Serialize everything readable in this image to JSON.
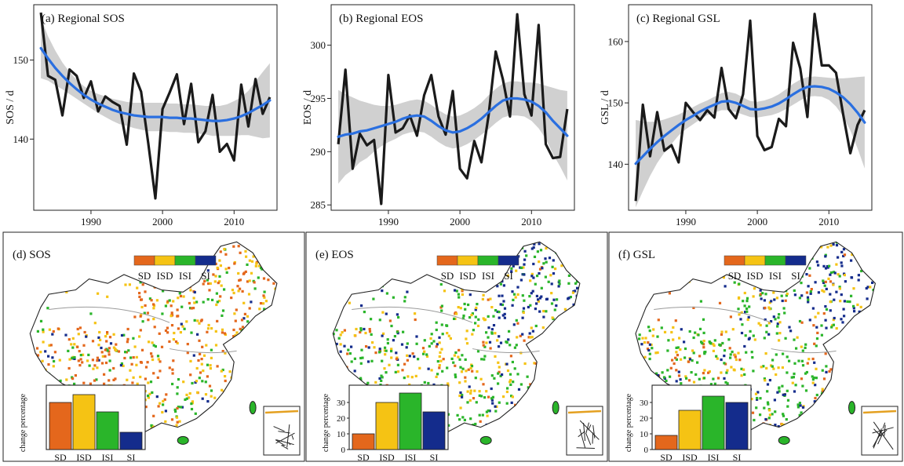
{
  "colors": {
    "series": "#1a1a1a",
    "trend": "#2a6fe0",
    "band": "#c8c8c8",
    "SD": "#e4671c",
    "ISD": "#f5c314",
    "ISI": "#2ab52a",
    "SI": "#142c8c",
    "land": "#ffffff",
    "border": "#222222"
  },
  "chart_data": [
    {
      "id": "a",
      "type": "line",
      "title": "(a) Regional SOS",
      "ylabel": "SOS / d",
      "xlabel": "",
      "xlim": [
        1982,
        2016
      ],
      "ylim": [
        131,
        157
      ],
      "xticks": [
        1990,
        2000,
        2010
      ],
      "yticks": [
        140,
        150
      ],
      "x": [
        1983,
        1984,
        1985,
        1986,
        1987,
        1988,
        1989,
        1990,
        1991,
        1992,
        1993,
        1994,
        1995,
        1996,
        1997,
        1998,
        1999,
        2000,
        2001,
        2002,
        2003,
        2004,
        2005,
        2006,
        2007,
        2008,
        2009,
        2010,
        2011,
        2012,
        2013,
        2014,
        2015
      ],
      "series": [
        {
          "name": "annual",
          "values": [
            156,
            148,
            147.5,
            143,
            148.8,
            148,
            145.2,
            147.3,
            143.5,
            145.4,
            144.7,
            144.2,
            139.3,
            148.3,
            146,
            139.5,
            132.5,
            143.8,
            145.9,
            148.2,
            141.9,
            147,
            139.6,
            141,
            145.6,
            138.4,
            139.4,
            137.3,
            146.9,
            141.6,
            147.6,
            143.2,
            145.3
          ]
        },
        {
          "name": "trend",
          "values": [
            151.5,
            150.2,
            149,
            148,
            147.1,
            146.3,
            145.6,
            145,
            144.5,
            144.1,
            143.7,
            143.4,
            143.2,
            143,
            142.9,
            142.8,
            142.8,
            142.8,
            142.7,
            142.7,
            142.6,
            142.6,
            142.5,
            142.4,
            142.3,
            142.3,
            142.4,
            142.6,
            142.9,
            143.3,
            143.8,
            144.3,
            144.9
          ]
        },
        {
          "name": "band_upper",
          "values": [
            155.3,
            153,
            151.2,
            149.7,
            148.5,
            147.5,
            146.7,
            146.1,
            145.7,
            145.4,
            145.1,
            144.9,
            144.7,
            144.6,
            144.6,
            144.6,
            144.6,
            144.6,
            144.5,
            144.5,
            144.4,
            144.4,
            144.3,
            144.2,
            144.2,
            144.2,
            144.4,
            144.8,
            145.3,
            146.1,
            147.3,
            148.5,
            149.6
          ]
        },
        {
          "name": "band_lower",
          "values": [
            147.7,
            147.4,
            146.8,
            146.3,
            145.7,
            145.1,
            144.5,
            143.9,
            143.3,
            142.8,
            142.3,
            141.9,
            141.7,
            141.4,
            141.2,
            141,
            141,
            141,
            140.9,
            140.9,
            140.8,
            140.8,
            140.7,
            140.6,
            140.4,
            140.4,
            140.4,
            140.4,
            140.5,
            140.5,
            140.3,
            140.1,
            140.2
          ]
        }
      ]
    },
    {
      "id": "b",
      "type": "line",
      "title": "(b) Regional EOS",
      "ylabel": "EOS / d",
      "xlabel": "",
      "xlim": [
        1982,
        2016
      ],
      "ylim": [
        284.5,
        303.8
      ],
      "xticks": [
        1990,
        2000,
        2010
      ],
      "yticks": [
        285,
        290,
        295,
        300
      ],
      "x": [
        1983,
        1984,
        1985,
        1986,
        1987,
        1988,
        1989,
        1990,
        1991,
        1992,
        1993,
        1994,
        1995,
        1996,
        1997,
        1998,
        1999,
        2000,
        2001,
        2002,
        2003,
        2004,
        2005,
        2006,
        2007,
        2008,
        2009,
        2010,
        2011,
        2012,
        2013,
        2014,
        2015
      ],
      "series": [
        {
          "name": "annual",
          "values": [
            290.7,
            297.7,
            288.4,
            291.7,
            290.6,
            291.1,
            285.1,
            297.2,
            291.8,
            292.2,
            293.4,
            291.5,
            295.3,
            297.2,
            293.3,
            291.6,
            295.7,
            288.4,
            287.5,
            291,
            289,
            293.4,
            299.4,
            296.8,
            293.3,
            302.9,
            295.4,
            293.4,
            301.9,
            290.7,
            289.4,
            289.5,
            294
          ]
        },
        {
          "name": "trend",
          "values": [
            291.4,
            291.6,
            291.7,
            291.9,
            292,
            292.2,
            292.4,
            292.6,
            292.8,
            293.1,
            293.3,
            293.4,
            293.3,
            292.9,
            292.4,
            292,
            291.8,
            291.9,
            292.2,
            292.6,
            293.1,
            293.7,
            294.3,
            294.8,
            295,
            295,
            294.9,
            294.7,
            294.3,
            293.7,
            292.9,
            292.2,
            291.5
          ]
        },
        {
          "name": "band_upper",
          "values": [
            295.8,
            295.4,
            295.1,
            294.8,
            294.6,
            294.4,
            294.3,
            294.3,
            294.4,
            294.6,
            294.8,
            294.9,
            294.8,
            294.4,
            293.9,
            293.5,
            293.3,
            293.4,
            293.7,
            294.1,
            294.6,
            295.3,
            295.9,
            296.4,
            296.6,
            296.6,
            296.5,
            296.5,
            296.4,
            296.2,
            296,
            295.8,
            295.7
          ]
        },
        {
          "name": "band_lower",
          "values": [
            287,
            287.8,
            288.3,
            289,
            289.4,
            290,
            290.5,
            290.9,
            291.2,
            291.6,
            291.8,
            291.9,
            291.8,
            291.4,
            290.9,
            290.5,
            290.3,
            290.4,
            290.7,
            291.1,
            291.6,
            292.1,
            292.7,
            293.2,
            293.4,
            293.4,
            293.3,
            292.9,
            292.2,
            291.2,
            289.8,
            288.6,
            287.3
          ]
        }
      ]
    },
    {
      "id": "c",
      "type": "line",
      "title": "(c) Regional GSL",
      "ylabel": "GSL / d",
      "xlabel": "",
      "xlim": [
        1982,
        2016
      ],
      "ylim": [
        132.5,
        166
      ],
      "xticks": [
        1990,
        2000,
        2010
      ],
      "yticks": [
        140,
        150,
        160
      ],
      "x": [
        1983,
        1984,
        1985,
        1986,
        1987,
        1988,
        1989,
        1990,
        1991,
        1992,
        1993,
        1994,
        1995,
        1996,
        1997,
        1998,
        1999,
        2000,
        2001,
        2002,
        2003,
        2004,
        2005,
        2006,
        2007,
        2008,
        2009,
        2010,
        2011,
        2012,
        2013,
        2014,
        2015
      ],
      "series": [
        {
          "name": "annual",
          "values": [
            134,
            149.7,
            141.3,
            148.5,
            142.2,
            143.1,
            140.3,
            150,
            148.5,
            147.2,
            148.8,
            147.6,
            155.7,
            149,
            147.5,
            151.4,
            163.4,
            144.6,
            142.3,
            142.8,
            147.4,
            146.2,
            159.8,
            155.6,
            147.7,
            164.5,
            156.1,
            156.1,
            154.9,
            148.1,
            141.8,
            146.4,
            148.8
          ]
        },
        {
          "name": "trend",
          "values": [
            140.1,
            141.3,
            142.5,
            143.6,
            144.6,
            145.5,
            146.4,
            147.2,
            147.9,
            148.6,
            149.2,
            149.7,
            150.2,
            150.3,
            150,
            149.5,
            149,
            148.9,
            149.1,
            149.4,
            149.9,
            150.6,
            151.4,
            152.1,
            152.6,
            152.7,
            152.6,
            152.3,
            151.7,
            150.9,
            149.8,
            148.4,
            146.8
          ]
        },
        {
          "name": "band_upper",
          "values": [
            147.2,
            147,
            146.9,
            147,
            147.3,
            147.7,
            148.1,
            148.7,
            149.3,
            149.9,
            150.4,
            151,
            151.6,
            151.8,
            151.5,
            150.9,
            150.3,
            150.2,
            150.4,
            150.8,
            151.4,
            152.2,
            153.1,
            153.8,
            154.2,
            154.3,
            154.2,
            154.1,
            154,
            154,
            154.1,
            154.2,
            154.3
          ]
        },
        {
          "name": "band_lower",
          "values": [
            133,
            135.6,
            138.1,
            140.2,
            141.9,
            143.3,
            144.7,
            145.7,
            146.5,
            147.3,
            148,
            148.4,
            148.8,
            148.8,
            148.5,
            148.1,
            147.7,
            147.6,
            147.8,
            148,
            148.4,
            149,
            149.7,
            150.4,
            151,
            151.1,
            151,
            150.5,
            149.4,
            147.8,
            145.5,
            142.6,
            139.3
          ]
        }
      ]
    },
    {
      "id": "d",
      "type": "bar",
      "title": "(d) SOS",
      "ylabel": "change percentage",
      "categories": [
        "SD",
        "ISD",
        "ISI",
        "SI"
      ],
      "values": [
        30,
        35,
        24,
        11
      ],
      "ylim": [
        0,
        40
      ],
      "yticks": [],
      "legend": [
        "SD",
        "ISD",
        "ISI",
        "SI"
      ]
    },
    {
      "id": "e",
      "type": "bar",
      "title": "(e) EOS",
      "ylabel": "change percentage",
      "categories": [
        "SD",
        "ISD",
        "ISI",
        "SI"
      ],
      "values": [
        10,
        30,
        36,
        24
      ],
      "ylim": [
        0,
        40
      ],
      "yticks": [
        0,
        10,
        20,
        30
      ],
      "legend": [
        "SD",
        "ISD",
        "ISI",
        "SI"
      ]
    },
    {
      "id": "f",
      "type": "bar",
      "title": "(f) GSL",
      "ylabel": "change percentage",
      "categories": [
        "SD",
        "ISD",
        "ISI",
        "SI"
      ],
      "values": [
        9,
        25,
        34,
        30
      ],
      "ylim": [
        0,
        40
      ],
      "yticks": [
        0,
        10,
        20,
        30
      ],
      "legend": [
        "SD",
        "ISD",
        "ISI",
        "SI"
      ]
    }
  ]
}
